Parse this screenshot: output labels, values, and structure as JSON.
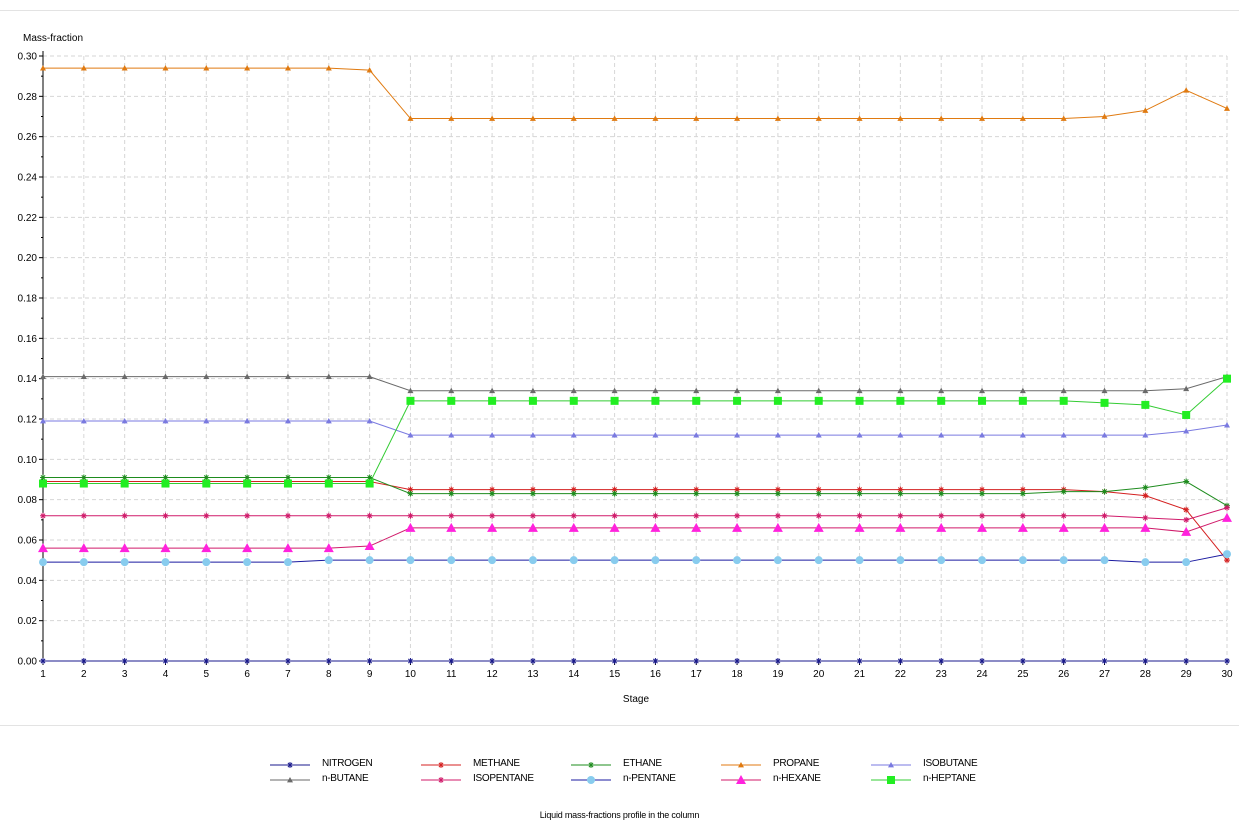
{
  "chart_data": {
    "type": "line",
    "title": "Liquid mass-fractions profile in the column",
    "xlabel": "Stage",
    "ylabel": "Mass-fraction",
    "x": [
      1,
      2,
      3,
      4,
      5,
      6,
      7,
      8,
      9,
      10,
      11,
      12,
      13,
      14,
      15,
      16,
      17,
      18,
      19,
      20,
      21,
      22,
      23,
      24,
      25,
      26,
      27,
      28,
      29,
      30
    ],
    "xlim": [
      1,
      30
    ],
    "ylim": [
      0,
      0.3
    ],
    "yticks": [
      "0.00",
      "0.02",
      "0.04",
      "0.06",
      "0.08",
      "0.10",
      "0.12",
      "0.14",
      "0.16",
      "0.18",
      "0.20",
      "0.22",
      "0.24",
      "0.26",
      "0.28",
      "0.30"
    ],
    "grid": true,
    "legend_position": "bottom",
    "series": [
      {
        "name": "NITROGEN",
        "color": "#1a1a8c",
        "marker": "star",
        "markerSize": 3,
        "values": [
          0,
          0,
          0,
          0,
          0,
          0,
          0,
          0,
          0,
          0,
          0,
          0,
          0,
          0,
          0,
          0,
          0,
          0,
          0,
          0,
          0,
          0,
          0,
          0,
          0,
          0,
          0,
          0,
          0,
          0
        ]
      },
      {
        "name": "METHANE",
        "color": "#d42020",
        "marker": "star",
        "markerSize": 3,
        "values": [
          0.089,
          0.089,
          0.089,
          0.089,
          0.089,
          0.089,
          0.089,
          0.089,
          0.089,
          0.085,
          0.085,
          0.085,
          0.085,
          0.085,
          0.085,
          0.085,
          0.085,
          0.085,
          0.085,
          0.085,
          0.085,
          0.085,
          0.085,
          0.085,
          0.085,
          0.085,
          0.084,
          0.082,
          0.075,
          0.05
        ]
      },
      {
        "name": "ETHANE",
        "color": "#1e8c1e",
        "marker": "star",
        "markerSize": 3,
        "values": [
          0.091,
          0.091,
          0.091,
          0.091,
          0.091,
          0.091,
          0.091,
          0.091,
          0.091,
          0.083,
          0.083,
          0.083,
          0.083,
          0.083,
          0.083,
          0.083,
          0.083,
          0.083,
          0.083,
          0.083,
          0.083,
          0.083,
          0.083,
          0.083,
          0.083,
          0.084,
          0.084,
          0.086,
          0.089,
          0.077
        ]
      },
      {
        "name": "PROPANE",
        "color": "#e07a10",
        "marker": "triangle",
        "markerSize": 3,
        "values": [
          0.294,
          0.294,
          0.294,
          0.294,
          0.294,
          0.294,
          0.294,
          0.294,
          0.293,
          0.269,
          0.269,
          0.269,
          0.269,
          0.269,
          0.269,
          0.269,
          0.269,
          0.269,
          0.269,
          0.269,
          0.269,
          0.269,
          0.269,
          0.269,
          0.269,
          0.269,
          0.27,
          0.273,
          0.283,
          0.274
        ]
      },
      {
        "name": "ISOBUTANE",
        "color": "#7a7ae0",
        "marker": "triangle",
        "markerSize": 3,
        "values": [
          0.119,
          0.119,
          0.119,
          0.119,
          0.119,
          0.119,
          0.119,
          0.119,
          0.119,
          0.112,
          0.112,
          0.112,
          0.112,
          0.112,
          0.112,
          0.112,
          0.112,
          0.112,
          0.112,
          0.112,
          0.112,
          0.112,
          0.112,
          0.112,
          0.112,
          0.112,
          0.112,
          0.112,
          0.114,
          0.117
        ]
      },
      {
        "name": "n-BUTANE",
        "color": "#6a6a6a",
        "marker": "triangle",
        "markerSize": 3,
        "values": [
          0.141,
          0.141,
          0.141,
          0.141,
          0.141,
          0.141,
          0.141,
          0.141,
          0.141,
          0.134,
          0.134,
          0.134,
          0.134,
          0.134,
          0.134,
          0.134,
          0.134,
          0.134,
          0.134,
          0.134,
          0.134,
          0.134,
          0.134,
          0.134,
          0.134,
          0.134,
          0.134,
          0.134,
          0.135,
          0.141
        ]
      },
      {
        "name": "ISOPENTANE",
        "color": "#d01a6a",
        "marker": "star",
        "markerSize": 3,
        "values": [
          0.072,
          0.072,
          0.072,
          0.072,
          0.072,
          0.072,
          0.072,
          0.072,
          0.072,
          0.072,
          0.072,
          0.072,
          0.072,
          0.072,
          0.072,
          0.072,
          0.072,
          0.072,
          0.072,
          0.072,
          0.072,
          0.072,
          0.072,
          0.072,
          0.072,
          0.072,
          0.072,
          0.071,
          0.07,
          0.076
        ]
      },
      {
        "name": "n-PENTANE",
        "color": "#1a1aa0",
        "marker": "circle",
        "markerSize": 4,
        "markerColor": "#88ccee",
        "values": [
          0.049,
          0.049,
          0.049,
          0.049,
          0.049,
          0.049,
          0.049,
          0.05,
          0.05,
          0.05,
          0.05,
          0.05,
          0.05,
          0.05,
          0.05,
          0.05,
          0.05,
          0.05,
          0.05,
          0.05,
          0.05,
          0.05,
          0.05,
          0.05,
          0.05,
          0.05,
          0.05,
          0.049,
          0.049,
          0.053
        ]
      },
      {
        "name": "n-HEXANE",
        "color": "#d01a6a",
        "marker": "triangle",
        "markerSize": 5,
        "markerColor": "#ff22dd",
        "values": [
          0.056,
          0.056,
          0.056,
          0.056,
          0.056,
          0.056,
          0.056,
          0.056,
          0.057,
          0.066,
          0.066,
          0.066,
          0.066,
          0.066,
          0.066,
          0.066,
          0.066,
          0.066,
          0.066,
          0.066,
          0.066,
          0.066,
          0.066,
          0.066,
          0.066,
          0.066,
          0.066,
          0.066,
          0.064,
          0.071
        ]
      },
      {
        "name": "n-HEPTANE",
        "color": "#33cc33",
        "marker": "square",
        "markerSize": 4,
        "markerColor": "#22ee22",
        "values": [
          0.088,
          0.088,
          0.088,
          0.088,
          0.088,
          0.088,
          0.088,
          0.088,
          0.088,
          0.129,
          0.129,
          0.129,
          0.129,
          0.129,
          0.129,
          0.129,
          0.129,
          0.129,
          0.129,
          0.129,
          0.129,
          0.129,
          0.129,
          0.129,
          0.129,
          0.129,
          0.128,
          0.127,
          0.122,
          0.14
        ]
      }
    ]
  }
}
